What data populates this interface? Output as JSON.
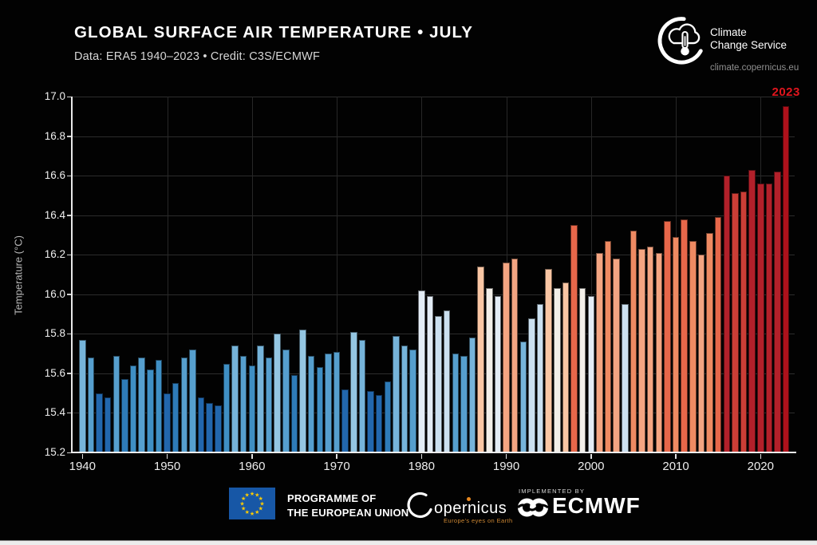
{
  "header": {
    "title": "GLOBAL SURFACE AIR TEMPERATURE • JULY",
    "subtitle": "Data: ERA5 1940–2023 • Credit: C3S/ECMWF"
  },
  "brand": {
    "name_line1": "Climate",
    "name_line2": "Change Service",
    "url": "climate.copernicus.eu"
  },
  "chart_data": {
    "type": "bar",
    "title": "GLOBAL SURFACE AIR TEMPERATURE • JULY",
    "xlabel": "",
    "ylabel": "Temperature (°C)",
    "ylim": [
      15.2,
      17.0
    ],
    "yticks": [
      15.2,
      15.4,
      15.6,
      15.8,
      16.0,
      16.2,
      16.4,
      16.6,
      16.8,
      17.0
    ],
    "xticks": [
      1940,
      1950,
      1960,
      1970,
      1980,
      1990,
      2000,
      2010,
      2020
    ],
    "grid": true,
    "legend": "none",
    "annotation": {
      "text": "2023",
      "color": "#e0161e"
    },
    "years": [
      1940,
      1941,
      1942,
      1943,
      1944,
      1945,
      1946,
      1947,
      1948,
      1949,
      1950,
      1951,
      1952,
      1953,
      1954,
      1955,
      1956,
      1957,
      1958,
      1959,
      1960,
      1961,
      1962,
      1963,
      1964,
      1965,
      1966,
      1967,
      1968,
      1969,
      1970,
      1971,
      1972,
      1973,
      1974,
      1975,
      1976,
      1977,
      1978,
      1979,
      1980,
      1981,
      1982,
      1983,
      1984,
      1985,
      1986,
      1987,
      1988,
      1989,
      1990,
      1991,
      1992,
      1993,
      1994,
      1995,
      1996,
      1997,
      1998,
      1999,
      2000,
      2001,
      2002,
      2003,
      2004,
      2005,
      2006,
      2007,
      2008,
      2009,
      2010,
      2011,
      2012,
      2013,
      2014,
      2015,
      2016,
      2017,
      2018,
      2019,
      2020,
      2021,
      2022,
      2023
    ],
    "values": [
      15.77,
      15.68,
      15.5,
      15.48,
      15.69,
      15.57,
      15.64,
      15.68,
      15.62,
      15.67,
      15.5,
      15.55,
      15.68,
      15.72,
      15.48,
      15.45,
      15.44,
      15.65,
      15.74,
      15.69,
      15.64,
      15.74,
      15.68,
      15.8,
      15.72,
      15.59,
      15.82,
      15.69,
      15.63,
      15.7,
      15.71,
      15.52,
      15.81,
      15.77,
      15.51,
      15.49,
      15.56,
      15.79,
      15.74,
      15.72,
      16.02,
      15.99,
      15.89,
      15.92,
      15.7,
      15.69,
      15.78,
      16.14,
      16.03,
      15.99,
      16.16,
      16.18,
      15.76,
      15.88,
      15.95,
      16.13,
      16.03,
      16.06,
      16.35,
      16.03,
      15.99,
      16.21,
      16.27,
      16.18,
      15.95,
      16.32,
      16.23,
      16.24,
      16.21,
      16.37,
      16.29,
      16.38,
      16.27,
      16.2,
      16.31,
      16.39,
      16.6,
      16.51,
      16.52,
      16.63,
      16.56,
      16.56,
      16.62,
      16.95
    ],
    "color_scale": [
      {
        "lt": 15.53,
        "color": "#2267ad"
      },
      {
        "lt": 15.6,
        "color": "#2e7bb8"
      },
      {
        "lt": 15.675,
        "color": "#3f8fc4"
      },
      {
        "lt": 15.735,
        "color": "#569fce"
      },
      {
        "lt": 15.795,
        "color": "#76b4da"
      },
      {
        "lt": 15.86,
        "color": "#94c6e2"
      },
      {
        "lt": 15.97,
        "color": "#cbe0f0"
      },
      {
        "lt": 16.025,
        "color": "#e3ecf5"
      },
      {
        "lt": 16.045,
        "color": "#f2efe9"
      },
      {
        "lt": 16.15,
        "color": "#f9c6a4"
      },
      {
        "lt": 16.255,
        "color": "#f4a582"
      },
      {
        "lt": 16.335,
        "color": "#ef8a62"
      },
      {
        "lt": 16.42,
        "color": "#e7674a"
      },
      {
        "lt": 16.545,
        "color": "#cb3e36"
      },
      {
        "lt": 16.645,
        "color": "#b2202a"
      },
      {
        "lt": 99,
        "color": "#ae111b"
      }
    ]
  },
  "footer": {
    "eu_programme_line1": "PROGRAMME OF",
    "eu_programme_line2": "THE EUROPEAN UNION",
    "copernicus_wordmark": "opernicus",
    "copernicus_tagline": "Europe's eyes on Earth",
    "implemented_by_label": "IMPLEMENTED BY",
    "ecmwf_label": "ECMWF"
  }
}
